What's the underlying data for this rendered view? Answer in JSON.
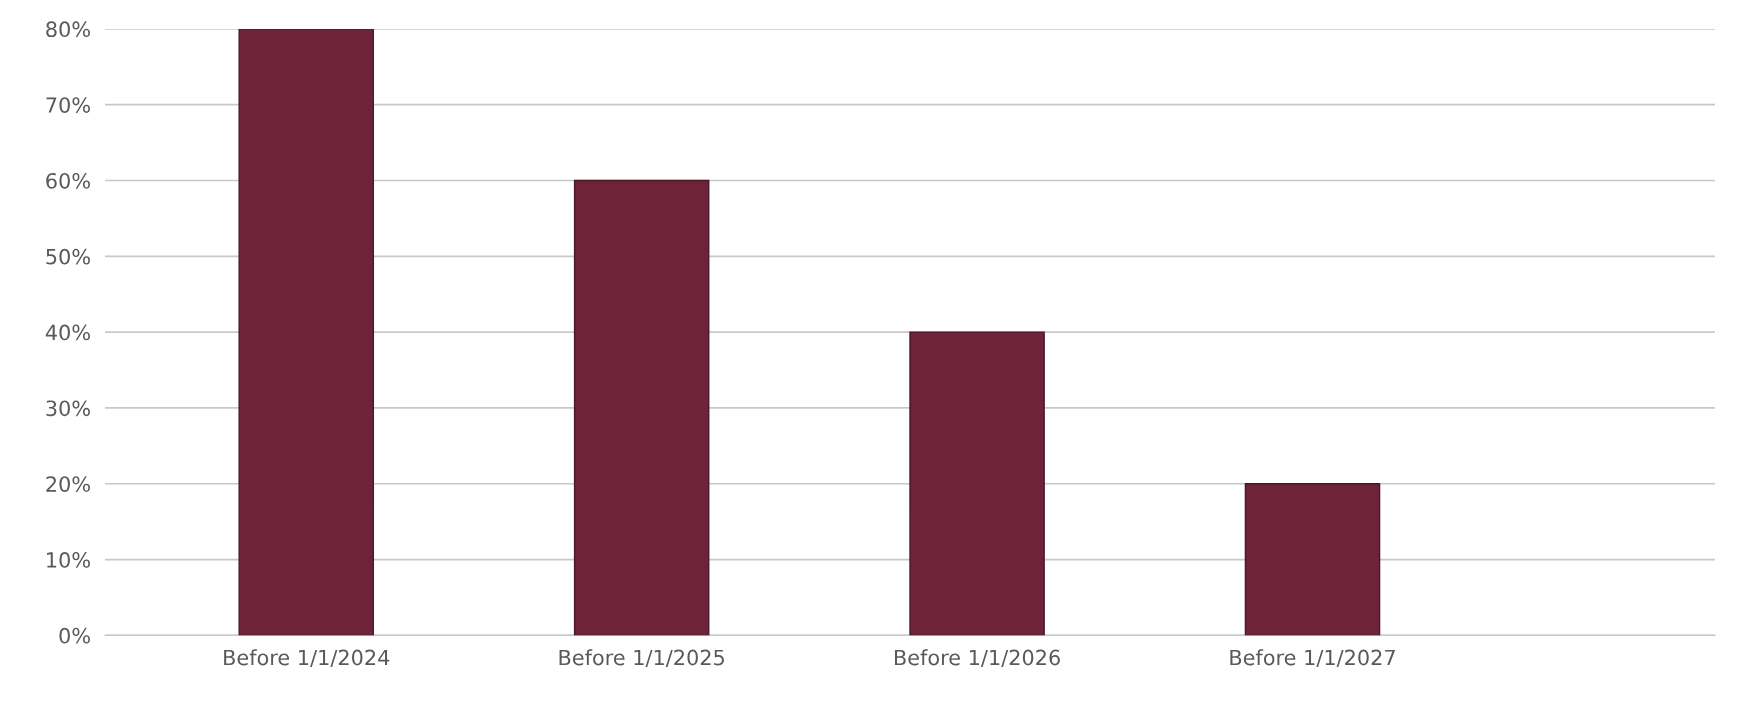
{
  "chart_data": {
    "type": "bar",
    "categories": [
      "Before 1/1/2024",
      "Before 1/1/2025",
      "Before 1/1/2026",
      "Before 1/1/2027"
    ],
    "values": [
      80,
      60,
      40,
      20
    ],
    "color": "#6e2339",
    "ylim": [
      0,
      80
    ],
    "yticks": [
      {
        "value": 0,
        "label": "0%"
      },
      {
        "value": 10,
        "label": "10%"
      },
      {
        "value": 20,
        "label": "20%"
      },
      {
        "value": 30,
        "label": "30%"
      },
      {
        "value": 40,
        "label": "40%"
      },
      {
        "value": 50,
        "label": "50%"
      },
      {
        "value": 60,
        "label": "60%"
      },
      {
        "value": 70,
        "label": "70%"
      },
      {
        "value": 80,
        "label": "80%"
      }
    ],
    "grid": "y"
  }
}
